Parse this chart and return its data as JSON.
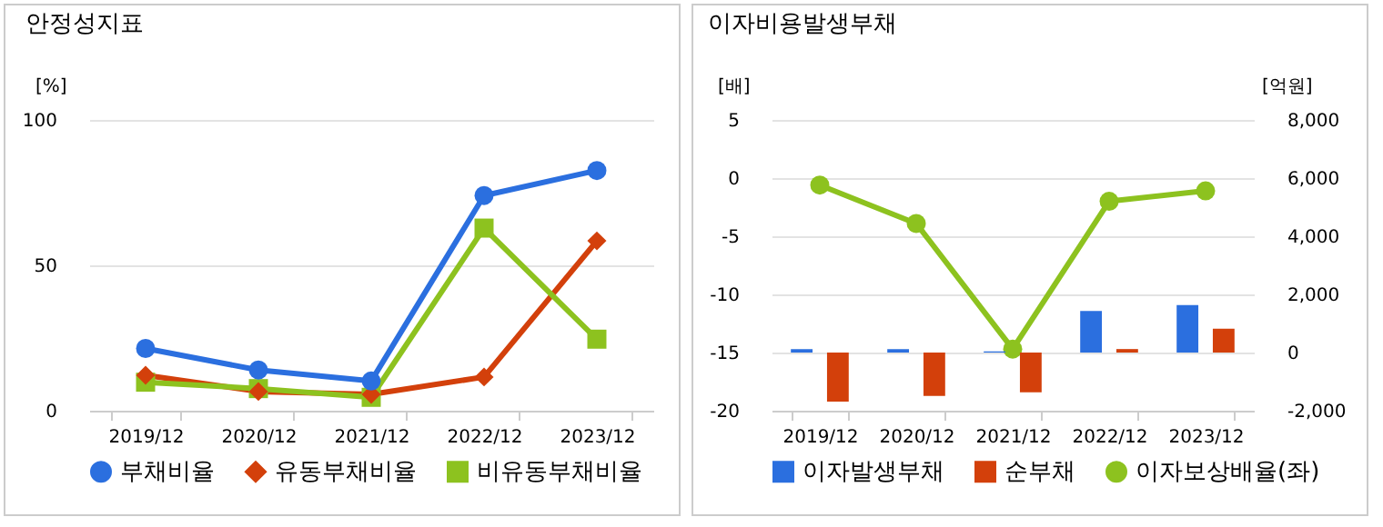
{
  "chart_data": [
    {
      "type": "line",
      "title": "안정성지표",
      "ylabel": "[%]",
      "categories": [
        "2019/12",
        "2020/12",
        "2021/12",
        "2022/12",
        "2023/12"
      ],
      "ylim": [
        0,
        100
      ],
      "yticks": [
        0,
        50,
        100
      ],
      "grid": "y",
      "legend": "bottom",
      "series": [
        {
          "name": "부채비율",
          "color": "#2b6fdf",
          "marker": "circle",
          "values": [
            21.4,
            14,
            10.2,
            74,
            82.6
          ]
        },
        {
          "name": "유동부채비율",
          "color": "#d3400b",
          "marker": "diamond",
          "values": [
            12.2,
            6.6,
            5.6,
            11.6,
            58.4
          ]
        },
        {
          "name": "비유동부채비율",
          "color": "#8dc21f",
          "marker": "square",
          "values": [
            9.8,
            7.6,
            4.6,
            62.8,
            24.6
          ]
        }
      ]
    },
    {
      "type": "bar",
      "title": "이자비용발생부채",
      "ylabel": "[배]",
      "y2label": "[억원]",
      "categories": [
        "2019/12",
        "2020/12",
        "2021/12",
        "2022/12",
        "2023/12"
      ],
      "ylim": [
        -20,
        5
      ],
      "yticks": [
        -20,
        -15,
        -10,
        -5,
        0,
        5
      ],
      "y2lim": [
        -2000,
        8000
      ],
      "y2ticks": [
        {
          "value": -2000,
          "label": "-2,000"
        },
        0,
        {
          "value": 2000,
          "label": "2,000"
        },
        {
          "value": 4000,
          "label": "4,000"
        },
        {
          "value": 6000,
          "label": "6,000"
        },
        {
          "value": 8000,
          "label": "8,000"
        }
      ],
      "grid": "y",
      "legend": "bottom",
      "series": [
        {
          "name": "이자발생부채",
          "color": "#2b6fdf",
          "axis": "y2",
          "values": [
            120,
            120,
            40,
            1430,
            1630
          ]
        },
        {
          "name": "순부채",
          "color": "#d3400b",
          "axis": "y2",
          "values": [
            -1690,
            -1490,
            -1370,
            120,
            820
          ]
        },
        {
          "name": "이자보상배율(좌)",
          "type": "line",
          "color": "#8dc21f",
          "marker": "circle",
          "values": [
            -0.6,
            -3.9,
            -14.7,
            -2.0,
            -1.1
          ]
        }
      ]
    }
  ]
}
